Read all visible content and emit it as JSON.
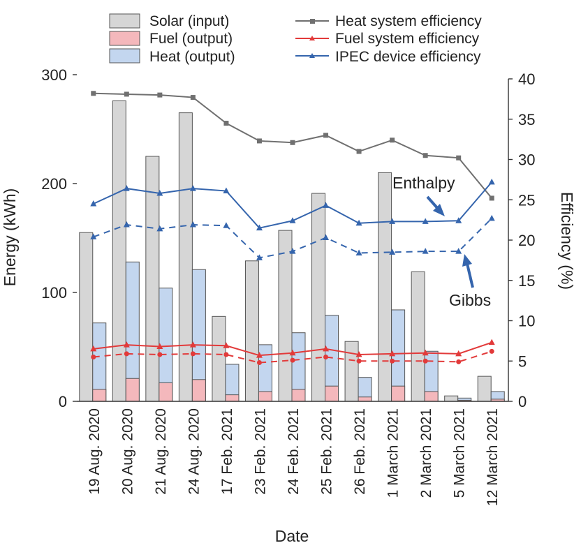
{
  "chart_data": {
    "type": "bar+line",
    "xlabel": "Date",
    "ylabel": "Energy (kWh)",
    "y2label": "Efficiency (%)",
    "ylim": [
      0,
      300
    ],
    "y2lim": [
      0,
      40
    ],
    "yticks": [
      0,
      100,
      200,
      300
    ],
    "y2ticks": [
      0,
      5,
      10,
      15,
      20,
      25,
      30,
      35,
      40
    ],
    "categories": [
      "19 Aug. 2020",
      "20 Aug. 2020",
      "21 Aug. 2020",
      "24 Aug. 2020",
      "17 Feb. 2021",
      "23 Feb. 2021",
      "24 Feb. 2021",
      "25 Feb. 2021",
      "26 Feb. 2021",
      "1 March 2021",
      "2 March 2021",
      "5 March 2021",
      "12 March 2021"
    ],
    "bars": [
      {
        "name": "Solar (input)",
        "color": "#d6d6d6",
        "values": [
          155,
          276,
          225,
          265,
          78,
          129,
          157,
          191,
          55,
          210,
          119,
          5,
          23
        ]
      },
      {
        "name": "Heat (output)",
        "color": "#c3d6ef",
        "values": [
          72,
          128,
          104,
          121,
          34,
          52,
          63,
          79,
          22,
          84,
          46,
          3,
          9
        ]
      },
      {
        "name": "Fuel (output)",
        "color": "#f4b8bc",
        "values": [
          11,
          21,
          17,
          20,
          6,
          9,
          11,
          14,
          4,
          14,
          9,
          1,
          2
        ]
      }
    ],
    "lines": [
      {
        "name": "Heat system efficiency",
        "color": "#707070",
        "marker": "square",
        "dash": false,
        "values": [
          38.2,
          38.1,
          38.0,
          37.7,
          34.5,
          32.3,
          32.1,
          33.0,
          31.0,
          32.4,
          30.5,
          30.2,
          25.2
        ]
      },
      {
        "name": "Fuel system efficiency",
        "color": "#e23a3a",
        "marker": "triangle",
        "dash": false,
        "values": [
          6.5,
          7.0,
          6.8,
          7.0,
          6.9,
          5.7,
          6.0,
          6.5,
          5.8,
          5.9,
          6.0,
          5.9,
          7.3
        ]
      },
      {
        "name": "Fuel system efficiency (Gibbs)",
        "color": "#e23a3a",
        "marker": "circle",
        "dash": true,
        "values": [
          5.5,
          5.9,
          5.8,
          5.9,
          5.8,
          4.8,
          5.1,
          5.5,
          5.0,
          5.0,
          5.0,
          4.9,
          6.2
        ]
      },
      {
        "name": "IPEC device efficiency",
        "color": "#3565ad",
        "marker": "triangle",
        "dash": false,
        "values": [
          24.5,
          26.4,
          25.8,
          26.4,
          26.1,
          21.5,
          22.4,
          24.3,
          22.1,
          22.3,
          22.3,
          22.4,
          27.2
        ]
      },
      {
        "name": "IPEC device efficiency (Gibbs)",
        "color": "#3565ad",
        "marker": "triangle",
        "dash": true,
        "values": [
          20.4,
          21.9,
          21.4,
          21.9,
          21.8,
          17.8,
          18.6,
          20.3,
          18.4,
          18.5,
          18.6,
          18.6,
          22.7
        ]
      }
    ],
    "legend": {
      "left": [
        "Solar (input)",
        "Fuel (output)",
        "Heat (output)"
      ],
      "right": [
        "Heat system efficiency",
        "Fuel system efficiency",
        "IPEC device efficiency"
      ],
      "placement": "top"
    },
    "annotations": {
      "enthalpy": "Enthalpy",
      "gibbs": "Gibbs"
    }
  }
}
